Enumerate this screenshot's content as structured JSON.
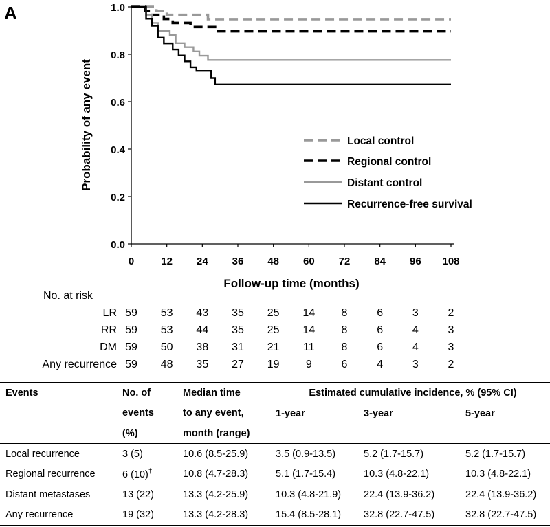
{
  "panel_label": "A",
  "chart_data": {
    "type": "line",
    "title": "",
    "xlabel": "Follow-up time (months)",
    "ylabel": "Probability of any event",
    "xlim": [
      0,
      108
    ],
    "ylim": [
      0,
      1.0
    ],
    "xticks": [
      0,
      12,
      24,
      36,
      48,
      60,
      72,
      84,
      96,
      108
    ],
    "yticks": [
      0.0,
      0.2,
      0.4,
      0.6,
      0.8,
      1.0
    ],
    "xtick_labels": [
      "0",
      "12",
      "24",
      "36",
      "48",
      "60",
      "72",
      "84",
      "96",
      "108"
    ],
    "ytick_labels": [
      "0.0",
      "0.2",
      "0.4",
      "0.6",
      "0.8",
      "1.0"
    ],
    "legend_position": "center-right",
    "series": [
      {
        "name": "Local control",
        "color": "#999999",
        "dash": "dashed",
        "steps": [
          [
            0,
            1.0
          ],
          [
            8.5,
            0.983
          ],
          [
            12,
            0.966
          ],
          [
            25.9,
            0.948
          ],
          [
            108,
            0.948
          ]
        ]
      },
      {
        "name": "Regional control",
        "color": "#000000",
        "dash": "dashed",
        "steps": [
          [
            0,
            1.0
          ],
          [
            4.7,
            0.983
          ],
          [
            7,
            0.966
          ],
          [
            11,
            0.949
          ],
          [
            14,
            0.932
          ],
          [
            20,
            0.915
          ],
          [
            28.3,
            0.897
          ],
          [
            108,
            0.897
          ]
        ]
      },
      {
        "name": "Distant control",
        "color": "#999999",
        "dash": "solid",
        "steps": [
          [
            0,
            1.0
          ],
          [
            5,
            0.966
          ],
          [
            7,
            0.932
          ],
          [
            9,
            0.898
          ],
          [
            13,
            0.881
          ],
          [
            15,
            0.847
          ],
          [
            18,
            0.83
          ],
          [
            21,
            0.812
          ],
          [
            23,
            0.794
          ],
          [
            25.9,
            0.776
          ],
          [
            108,
            0.776
          ]
        ]
      },
      {
        "name": "Recurrence-free survival",
        "color": "#000000",
        "dash": "solid",
        "steps": [
          [
            0,
            1.0
          ],
          [
            5,
            0.95
          ],
          [
            7,
            0.92
          ],
          [
            9,
            0.87
          ],
          [
            11,
            0.846
          ],
          [
            14,
            0.82
          ],
          [
            16,
            0.795
          ],
          [
            18,
            0.77
          ],
          [
            20,
            0.745
          ],
          [
            22,
            0.73
          ],
          [
            27,
            0.7
          ],
          [
            28.3,
            0.673
          ],
          [
            108,
            0.673
          ]
        ]
      }
    ],
    "risk_table": {
      "header": "No. at risk",
      "rows": [
        {
          "label": "LR",
          "values": [
            "59",
            "53",
            "43",
            "35",
            "25",
            "14",
            "8",
            "6",
            "3",
            "2"
          ]
        },
        {
          "label": "RR",
          "values": [
            "59",
            "53",
            "44",
            "35",
            "25",
            "14",
            "8",
            "6",
            "4",
            "3"
          ]
        },
        {
          "label": "DM",
          "values": [
            "59",
            "50",
            "38",
            "31",
            "21",
            "11",
            "8",
            "6",
            "4",
            "3"
          ]
        },
        {
          "label": "Any recurrence",
          "values": [
            "59",
            "48",
            "35",
            "27",
            "19",
            "9",
            "6",
            "4",
            "3",
            "2"
          ]
        }
      ]
    }
  },
  "table": {
    "headers": {
      "events": "Events",
      "no_of_events_1": "No. of",
      "no_of_events_2": "events",
      "no_of_events_3": "(%)",
      "median_1": "Median time",
      "median_2": "to any event,",
      "median_3": "month (range)",
      "cum_incidence": "Estimated cumulative incidence, % (95% CI)",
      "one_year": "1-year",
      "three_year": "3-year",
      "five_year": "5-year"
    },
    "rows": [
      {
        "event": "Local recurrence",
        "n": "3 (5)",
        "dagger": "",
        "median": "10.6 (8.5-25.9)",
        "y1": "3.5 (0.9-13.5)",
        "y3": "5.2 (1.7-15.7)",
        "y5": "5.2 (1.7-15.7)"
      },
      {
        "event": "Regional recurrence",
        "n": "6 (10)",
        "dagger": "†",
        "median": "10.8 (4.7-28.3)",
        "y1": "5.1 (1.7-15.4)",
        "y3": "10.3 (4.8-22.1)",
        "y5": "10.3 (4.8-22.1)"
      },
      {
        "event": "Distant metastases",
        "n": "13 (22)",
        "dagger": "",
        "median": "13.3 (4.2-25.9)",
        "y1": "10.3 (4.8-21.9)",
        "y3": "22.4 (13.9-36.2)",
        "y5": "22.4 (13.9-36.2)"
      },
      {
        "event": "Any recurrence",
        "n": "19 (32)",
        "dagger": "",
        "median": "13.3 (4.2-28.3)",
        "y1": "15.4 (8.5-28.1)",
        "y3": "32.8 (22.7-47.5)",
        "y5": "32.8 (22.7-47.5)"
      }
    ]
  }
}
